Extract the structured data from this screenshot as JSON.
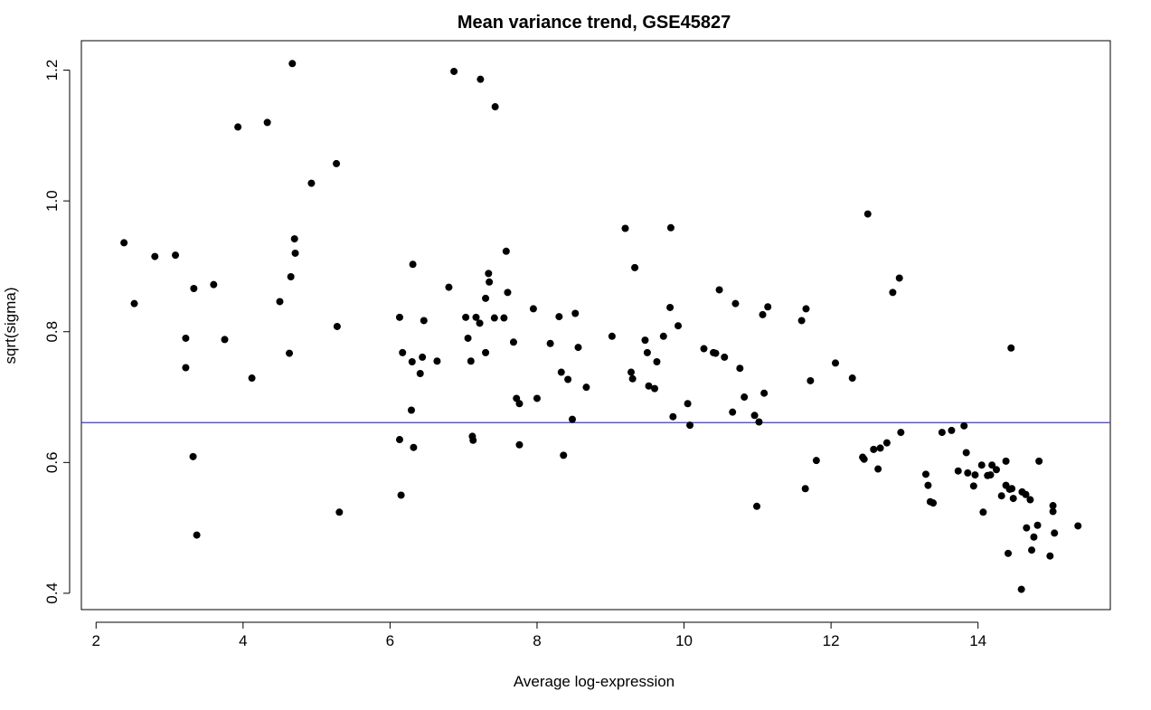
{
  "chart_data": {
    "type": "scatter",
    "title": "Mean variance trend, GSE45827",
    "xlabel": "Average log-expression",
    "ylabel": "sqrt(sigma)",
    "xlim": [
      1.8,
      15.8
    ],
    "ylim": [
      0.375,
      1.245
    ],
    "xticks": [
      2,
      4,
      6,
      8,
      10,
      12,
      14
    ],
    "yticks": [
      0.4,
      0.6,
      0.8,
      1.0,
      1.2
    ],
    "ytick_labels": [
      "0.4",
      "0.6",
      "0.8",
      "1.0",
      "1.2"
    ],
    "grid": false,
    "point_color": "#000000",
    "trend_color": "#3a3ad6",
    "trend_y": 0.661,
    "points": [
      [
        2.38,
        0.936
      ],
      [
        2.52,
        0.843
      ],
      [
        2.8,
        0.915
      ],
      [
        3.08,
        0.917
      ],
      [
        3.22,
        0.79
      ],
      [
        3.22,
        0.745
      ],
      [
        3.33,
        0.866
      ],
      [
        3.32,
        0.609
      ],
      [
        3.37,
        0.489
      ],
      [
        3.6,
        0.872
      ],
      [
        3.75,
        0.788
      ],
      [
        3.93,
        1.113
      ],
      [
        4.12,
        0.729
      ],
      [
        4.33,
        1.12
      ],
      [
        4.5,
        0.846
      ],
      [
        4.63,
        0.767
      ],
      [
        4.65,
        0.884
      ],
      [
        4.67,
        1.21
      ],
      [
        4.7,
        0.942
      ],
      [
        4.71,
        0.92
      ],
      [
        4.93,
        1.027
      ],
      [
        5.27,
        1.057
      ],
      [
        5.28,
        0.808
      ],
      [
        5.31,
        0.524
      ],
      [
        6.13,
        0.822
      ],
      [
        6.13,
        0.635
      ],
      [
        6.15,
        0.55
      ],
      [
        6.17,
        0.768
      ],
      [
        6.29,
        0.68
      ],
      [
        6.3,
        0.754
      ],
      [
        6.31,
        0.903
      ],
      [
        6.32,
        0.623
      ],
      [
        6.41,
        0.736
      ],
      [
        6.44,
        0.761
      ],
      [
        6.46,
        0.817
      ],
      [
        6.64,
        0.755
      ],
      [
        6.8,
        0.868
      ],
      [
        6.87,
        1.198
      ],
      [
        7.03,
        0.822
      ],
      [
        7.06,
        0.79
      ],
      [
        7.1,
        0.755
      ],
      [
        7.12,
        0.64
      ],
      [
        7.13,
        0.634
      ],
      [
        7.17,
        0.822
      ],
      [
        7.22,
        0.813
      ],
      [
        7.23,
        1.186
      ],
      [
        7.3,
        0.851
      ],
      [
        7.3,
        0.768
      ],
      [
        7.34,
        0.889
      ],
      [
        7.35,
        0.876
      ],
      [
        7.42,
        0.821
      ],
      [
        7.43,
        1.144
      ],
      [
        7.55,
        0.821
      ],
      [
        7.58,
        0.923
      ],
      [
        7.6,
        0.86
      ],
      [
        7.68,
        0.784
      ],
      [
        7.72,
        0.698
      ],
      [
        7.76,
        0.69
      ],
      [
        7.76,
        0.627
      ],
      [
        7.95,
        0.835
      ],
      [
        8.0,
        0.698
      ],
      [
        8.18,
        0.782
      ],
      [
        8.3,
        0.823
      ],
      [
        8.33,
        0.738
      ],
      [
        8.36,
        0.611
      ],
      [
        8.42,
        0.727
      ],
      [
        8.48,
        0.666
      ],
      [
        8.52,
        0.828
      ],
      [
        8.56,
        0.776
      ],
      [
        8.67,
        0.715
      ],
      [
        9.02,
        0.793
      ],
      [
        9.2,
        0.958
      ],
      [
        9.28,
        0.738
      ],
      [
        9.3,
        0.728
      ],
      [
        9.33,
        0.898
      ],
      [
        9.47,
        0.787
      ],
      [
        9.5,
        0.768
      ],
      [
        9.52,
        0.717
      ],
      [
        9.6,
        0.713
      ],
      [
        9.63,
        0.754
      ],
      [
        9.72,
        0.793
      ],
      [
        9.81,
        0.837
      ],
      [
        9.82,
        0.959
      ],
      [
        9.85,
        0.67
      ],
      [
        9.92,
        0.809
      ],
      [
        10.05,
        0.69
      ],
      [
        10.08,
        0.657
      ],
      [
        10.27,
        0.774
      ],
      [
        10.4,
        0.768
      ],
      [
        10.43,
        0.767
      ],
      [
        10.48,
        0.864
      ],
      [
        10.55,
        0.761
      ],
      [
        10.66,
        0.677
      ],
      [
        10.7,
        0.843
      ],
      [
        10.76,
        0.744
      ],
      [
        10.82,
        0.7
      ],
      [
        10.96,
        0.672
      ],
      [
        10.99,
        0.533
      ],
      [
        11.02,
        0.662
      ],
      [
        11.07,
        0.826
      ],
      [
        11.09,
        0.706
      ],
      [
        11.14,
        0.838
      ],
      [
        11.6,
        0.817
      ],
      [
        11.65,
        0.56
      ],
      [
        11.66,
        0.835
      ],
      [
        11.72,
        0.725
      ],
      [
        11.8,
        0.603
      ],
      [
        12.06,
        0.752
      ],
      [
        12.29,
        0.729
      ],
      [
        12.43,
        0.608
      ],
      [
        12.45,
        0.605
      ],
      [
        12.5,
        0.98
      ],
      [
        12.58,
        0.62
      ],
      [
        12.64,
        0.59
      ],
      [
        12.67,
        0.622
      ],
      [
        12.76,
        0.63
      ],
      [
        12.84,
        0.86
      ],
      [
        12.93,
        0.882
      ],
      [
        12.95,
        0.646
      ],
      [
        13.29,
        0.582
      ],
      [
        13.32,
        0.565
      ],
      [
        13.35,
        0.54
      ],
      [
        13.39,
        0.538
      ],
      [
        13.51,
        0.646
      ],
      [
        13.64,
        0.649
      ],
      [
        13.73,
        0.587
      ],
      [
        13.81,
        0.656
      ],
      [
        13.84,
        0.615
      ],
      [
        13.86,
        0.584
      ],
      [
        13.94,
        0.564
      ],
      [
        13.96,
        0.581
      ],
      [
        14.05,
        0.596
      ],
      [
        14.07,
        0.524
      ],
      [
        14.13,
        0.58
      ],
      [
        14.17,
        0.581
      ],
      [
        14.19,
        0.596
      ],
      [
        14.25,
        0.589
      ],
      [
        14.32,
        0.549
      ],
      [
        14.38,
        0.602
      ],
      [
        14.38,
        0.565
      ],
      [
        14.41,
        0.461
      ],
      [
        14.43,
        0.559
      ],
      [
        14.45,
        0.775
      ],
      [
        14.46,
        0.56
      ],
      [
        14.48,
        0.545
      ],
      [
        14.59,
        0.406
      ],
      [
        14.6,
        0.555
      ],
      [
        14.65,
        0.551
      ],
      [
        14.66,
        0.5
      ],
      [
        14.71,
        0.543
      ],
      [
        14.73,
        0.466
      ],
      [
        14.76,
        0.486
      ],
      [
        14.81,
        0.504
      ],
      [
        14.83,
        0.602
      ],
      [
        14.98,
        0.457
      ],
      [
        15.02,
        0.525
      ],
      [
        15.02,
        0.534
      ],
      [
        15.04,
        0.492
      ],
      [
        15.36,
        0.503
      ]
    ]
  }
}
